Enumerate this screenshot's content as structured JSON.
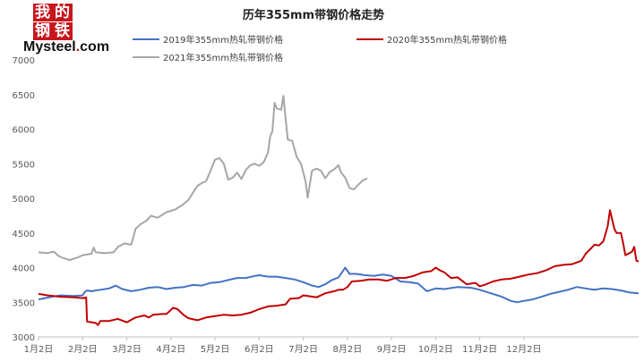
{
  "logo": {
    "chars": [
      "我",
      "的",
      "钢",
      "铁"
    ],
    "en_main": "Mysteel",
    "en_dot": ".",
    "en_tld": "com"
  },
  "chart_data": {
    "type": "line",
    "title": "历年355mm带钢价格走势",
    "xlabel": "",
    "ylabel": "",
    "ylim": [
      3000,
      7000
    ],
    "yticks": [
      3000,
      3500,
      4000,
      4500,
      5000,
      5500,
      6000,
      6500,
      7000
    ],
    "xticks": [
      "1月2日",
      "2月2日",
      "3月2日",
      "4月2日",
      "5月2日",
      "6月2日",
      "7月2日",
      "8月2日",
      "9月2日",
      "10月2日",
      "11月2日",
      "12月2日"
    ],
    "grid": false,
    "legend_position": "top",
    "series": [
      {
        "name": "2019年355mm热轧带钢价格",
        "color": "#4472c4",
        "points": [
          [
            0,
            3540
          ],
          [
            0.15,
            3560
          ],
          [
            0.3,
            3580
          ],
          [
            0.5,
            3600
          ],
          [
            0.8,
            3590
          ],
          [
            1.0,
            3600
          ],
          [
            1.05,
            3650
          ],
          [
            1.1,
            3670
          ],
          [
            1.2,
            3660
          ],
          [
            1.4,
            3680
          ],
          [
            1.6,
            3700
          ],
          [
            1.75,
            3740
          ],
          [
            1.9,
            3690
          ],
          [
            2.1,
            3660
          ],
          [
            2.3,
            3680
          ],
          [
            2.5,
            3710
          ],
          [
            2.7,
            3720
          ],
          [
            2.9,
            3690
          ],
          [
            3.1,
            3710
          ],
          [
            3.3,
            3720
          ],
          [
            3.5,
            3750
          ],
          [
            3.7,
            3740
          ],
          [
            3.9,
            3780
          ],
          [
            4.1,
            3790
          ],
          [
            4.3,
            3820
          ],
          [
            4.5,
            3850
          ],
          [
            4.7,
            3850
          ],
          [
            4.9,
            3880
          ],
          [
            5.0,
            3890
          ],
          [
            5.2,
            3870
          ],
          [
            5.4,
            3870
          ],
          [
            5.6,
            3850
          ],
          [
            5.8,
            3830
          ],
          [
            6.0,
            3790
          ],
          [
            6.2,
            3740
          ],
          [
            6.35,
            3720
          ],
          [
            6.5,
            3760
          ],
          [
            6.65,
            3820
          ],
          [
            6.8,
            3860
          ],
          [
            6.95,
            4000
          ],
          [
            7.05,
            3910
          ],
          [
            7.2,
            3910
          ],
          [
            7.4,
            3890
          ],
          [
            7.6,
            3880
          ],
          [
            7.8,
            3900
          ],
          [
            8.0,
            3880
          ],
          [
            8.2,
            3800
          ],
          [
            8.4,
            3790
          ],
          [
            8.6,
            3770
          ],
          [
            8.8,
            3660
          ],
          [
            9.0,
            3700
          ],
          [
            9.2,
            3690
          ],
          [
            9.5,
            3720
          ],
          [
            9.8,
            3710
          ],
          [
            10.0,
            3680
          ],
          [
            10.2,
            3640
          ],
          [
            10.4,
            3600
          ],
          [
            10.5,
            3580
          ],
          [
            10.7,
            3520
          ],
          [
            10.85,
            3500
          ],
          [
            11.0,
            3520
          ],
          [
            11.2,
            3540
          ],
          [
            11.4,
            3580
          ],
          [
            11.6,
            3620
          ],
          [
            11.8,
            3650
          ],
          [
            12.0,
            3680
          ],
          [
            12.2,
            3720
          ],
          [
            12.4,
            3700
          ],
          [
            12.6,
            3680
          ],
          [
            12.8,
            3700
          ],
          [
            13.0,
            3690
          ],
          [
            13.2,
            3670
          ],
          [
            13.4,
            3640
          ],
          [
            13.6,
            3630
          ]
        ]
      },
      {
        "name": "2020年355mm热轧带钢价格",
        "color": "#c00000",
        "points": [
          [
            0,
            3620
          ],
          [
            0.2,
            3600
          ],
          [
            0.5,
            3580
          ],
          [
            0.8,
            3570
          ],
          [
            1.0,
            3560
          ],
          [
            1.08,
            3570
          ],
          [
            1.1,
            3220
          ],
          [
            1.3,
            3200
          ],
          [
            1.35,
            3170
          ],
          [
            1.4,
            3230
          ],
          [
            1.6,
            3230
          ],
          [
            1.8,
            3260
          ],
          [
            2.0,
            3210
          ],
          [
            2.2,
            3280
          ],
          [
            2.4,
            3310
          ],
          [
            2.5,
            3280
          ],
          [
            2.6,
            3320
          ],
          [
            2.8,
            3330
          ],
          [
            2.9,
            3330
          ],
          [
            3.0,
            3390
          ],
          [
            3.05,
            3420
          ],
          [
            3.15,
            3400
          ],
          [
            3.3,
            3310
          ],
          [
            3.4,
            3270
          ],
          [
            3.6,
            3240
          ],
          [
            3.8,
            3280
          ],
          [
            4.0,
            3300
          ],
          [
            4.2,
            3320
          ],
          [
            4.4,
            3310
          ],
          [
            4.6,
            3320
          ],
          [
            4.8,
            3350
          ],
          [
            5.0,
            3400
          ],
          [
            5.2,
            3440
          ],
          [
            5.4,
            3450
          ],
          [
            5.6,
            3470
          ],
          [
            5.7,
            3550
          ],
          [
            5.9,
            3560
          ],
          [
            6.0,
            3600
          ],
          [
            6.3,
            3570
          ],
          [
            6.5,
            3630
          ],
          [
            6.7,
            3660
          ],
          [
            6.8,
            3680
          ],
          [
            6.9,
            3680
          ],
          [
            7.0,
            3720
          ],
          [
            7.1,
            3800
          ],
          [
            7.3,
            3810
          ],
          [
            7.5,
            3830
          ],
          [
            7.7,
            3830
          ],
          [
            7.9,
            3810
          ],
          [
            8.1,
            3850
          ],
          [
            8.3,
            3850
          ],
          [
            8.5,
            3880
          ],
          [
            8.7,
            3930
          ],
          [
            8.9,
            3950
          ],
          [
            9.0,
            4000
          ],
          [
            9.1,
            3960
          ],
          [
            9.2,
            3930
          ],
          [
            9.35,
            3850
          ],
          [
            9.5,
            3860
          ],
          [
            9.7,
            3760
          ],
          [
            9.9,
            3780
          ],
          [
            10.0,
            3730
          ],
          [
            10.1,
            3750
          ],
          [
            10.3,
            3800
          ],
          [
            10.5,
            3830
          ],
          [
            10.7,
            3840
          ],
          [
            10.9,
            3870
          ],
          [
            11.1,
            3900
          ],
          [
            11.3,
            3920
          ],
          [
            11.5,
            3960
          ],
          [
            11.7,
            4020
          ],
          [
            11.9,
            4040
          ],
          [
            12.1,
            4050
          ],
          [
            12.3,
            4100
          ],
          [
            12.4,
            4200
          ],
          [
            12.6,
            4330
          ],
          [
            12.7,
            4320
          ],
          [
            12.8,
            4380
          ],
          [
            12.9,
            4600
          ],
          [
            12.95,
            4830
          ],
          [
            13.05,
            4560
          ],
          [
            13.1,
            4500
          ],
          [
            13.2,
            4500
          ],
          [
            13.25,
            4350
          ],
          [
            13.3,
            4180
          ],
          [
            13.45,
            4230
          ],
          [
            13.5,
            4300
          ],
          [
            13.55,
            4100
          ],
          [
            13.6,
            4090
          ]
        ]
      },
      {
        "name": "2021年355mm热轧带钢价格",
        "color": "#a6a6a6",
        "points": [
          [
            0,
            4220
          ],
          [
            0.2,
            4210
          ],
          [
            0.35,
            4230
          ],
          [
            0.45,
            4170
          ],
          [
            0.55,
            4140
          ],
          [
            0.7,
            4110
          ],
          [
            0.9,
            4150
          ],
          [
            1.0,
            4180
          ],
          [
            1.2,
            4200
          ],
          [
            1.25,
            4290
          ],
          [
            1.3,
            4220
          ],
          [
            1.5,
            4210
          ],
          [
            1.7,
            4220
          ],
          [
            1.8,
            4300
          ],
          [
            1.95,
            4350
          ],
          [
            2.1,
            4330
          ],
          [
            2.2,
            4560
          ],
          [
            2.3,
            4620
          ],
          [
            2.45,
            4680
          ],
          [
            2.55,
            4750
          ],
          [
            2.7,
            4720
          ],
          [
            2.9,
            4800
          ],
          [
            3.1,
            4840
          ],
          [
            3.25,
            4900
          ],
          [
            3.4,
            4980
          ],
          [
            3.5,
            5080
          ],
          [
            3.6,
            5180
          ],
          [
            3.7,
            5220
          ],
          [
            3.8,
            5250
          ],
          [
            3.9,
            5400
          ],
          [
            4.0,
            5560
          ],
          [
            4.1,
            5580
          ],
          [
            4.2,
            5500
          ],
          [
            4.3,
            5270
          ],
          [
            4.4,
            5300
          ],
          [
            4.5,
            5370
          ],
          [
            4.6,
            5280
          ],
          [
            4.7,
            5410
          ],
          [
            4.8,
            5480
          ],
          [
            4.9,
            5500
          ],
          [
            5.0,
            5470
          ],
          [
            5.1,
            5520
          ],
          [
            5.2,
            5660
          ],
          [
            5.25,
            5890
          ],
          [
            5.3,
            5970
          ],
          [
            5.35,
            6380
          ],
          [
            5.4,
            6300
          ],
          [
            5.5,
            6280
          ],
          [
            5.55,
            6480
          ],
          [
            5.6,
            6150
          ],
          [
            5.65,
            5850
          ],
          [
            5.75,
            5830
          ],
          [
            5.85,
            5600
          ],
          [
            5.95,
            5500
          ],
          [
            6.05,
            5250
          ],
          [
            6.1,
            5010
          ],
          [
            6.2,
            5400
          ],
          [
            6.3,
            5430
          ],
          [
            6.4,
            5400
          ],
          [
            6.5,
            5290
          ],
          [
            6.6,
            5380
          ],
          [
            6.7,
            5420
          ],
          [
            6.8,
            5480
          ],
          [
            6.85,
            5380
          ],
          [
            6.95,
            5300
          ],
          [
            7.05,
            5150
          ],
          [
            7.15,
            5130
          ],
          [
            7.25,
            5200
          ],
          [
            7.35,
            5260
          ],
          [
            7.45,
            5290
          ]
        ]
      }
    ]
  }
}
